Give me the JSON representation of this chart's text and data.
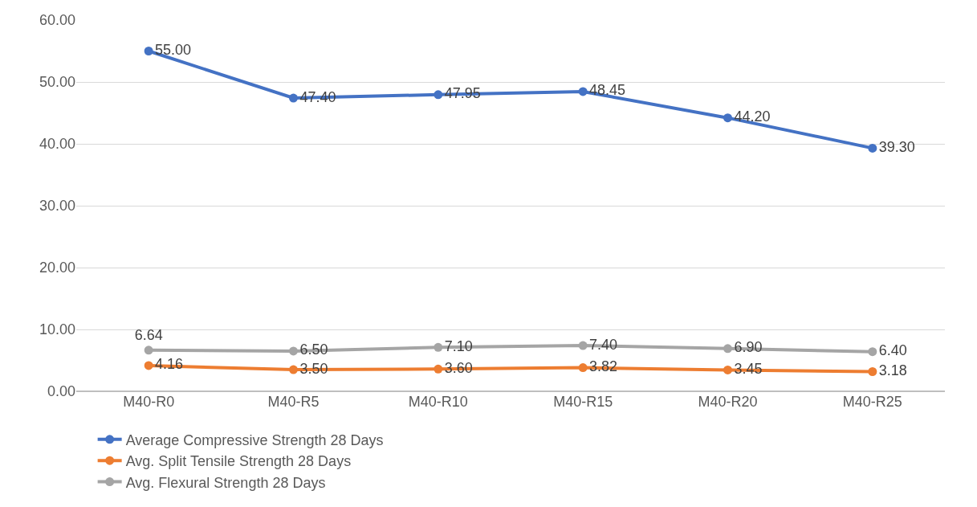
{
  "chart_data": {
    "type": "line",
    "categories": [
      "M40-R0",
      "M40-R5",
      "M40-R10",
      "M40-R15",
      "M40-R20",
      "M40-R25"
    ],
    "series": [
      {
        "name": "Average Compressive Strength 28 Days",
        "color": "#4472c4",
        "values": [
          55.0,
          47.4,
          47.95,
          48.45,
          44.2,
          39.3
        ],
        "value_labels": [
          "55.00",
          "47.40",
          "47.95",
          "48.45",
          "44.20",
          "39.30"
        ]
      },
      {
        "name": "Avg. Split Tensile Strength 28 Days",
        "color": "#ed7d31",
        "values": [
          4.16,
          3.5,
          3.6,
          3.82,
          3.45,
          3.18
        ],
        "value_labels": [
          "4.16",
          "3.50",
          "3.60",
          "3.82",
          "3.45",
          "3.18"
        ]
      },
      {
        "name": "Avg. Flexural Strength 28 Days",
        "color": "#a5a5a5",
        "values": [
          6.64,
          6.5,
          7.1,
          7.4,
          6.9,
          6.4
        ],
        "value_labels": [
          "6.64",
          "6.50",
          "7.10",
          "7.40",
          "6.90",
          "6.40"
        ]
      }
    ],
    "ylim": [
      0,
      60
    ],
    "yticks": [
      {
        "value": 0,
        "label": "0.00"
      },
      {
        "value": 10,
        "label": "10.00"
      },
      {
        "value": 20,
        "label": "20.00"
      },
      {
        "value": 30,
        "label": "30.00"
      },
      {
        "value": 40,
        "label": "40.00"
      },
      {
        "value": 50,
        "label": "50.00"
      },
      {
        "value": 60,
        "label": "60.00"
      }
    ],
    "grid": "y",
    "legend": "bottom",
    "marker": "circle",
    "line_style": "solid"
  }
}
